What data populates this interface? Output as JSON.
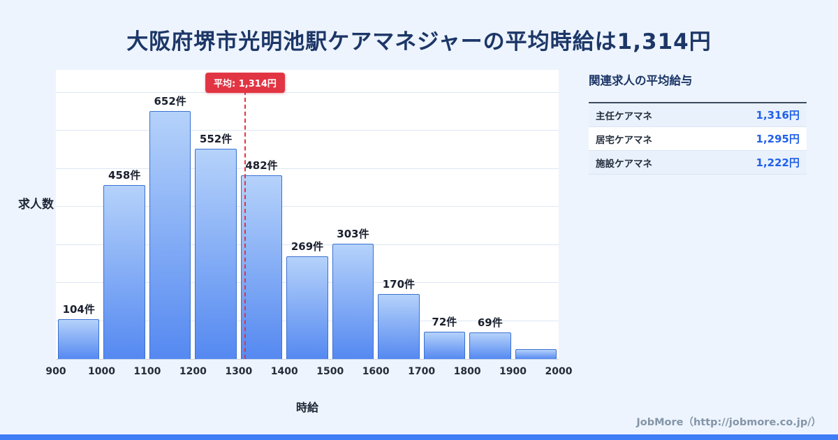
{
  "colors": {
    "background": "#edf4fd",
    "title_navy": "#1c3667",
    "bar_top": "#b5d2fa",
    "bar_bottom": "#5589f1",
    "average_red": "#e23543",
    "value_blue": "#2160e8",
    "accent_blue": "#3f7df6"
  },
  "chart_data": {
    "type": "bar",
    "title": "大阪府堺市光明池駅ケアマネジャーの平均時給は1,314円",
    "xlabel": "時給",
    "ylabel": "求人数",
    "x_ticks": [
      900,
      1000,
      1100,
      1200,
      1300,
      1400,
      1500,
      1600,
      1700,
      1800,
      1900,
      2000
    ],
    "bins": [
      {
        "range": [
          900,
          1000
        ],
        "value": 104,
        "label": "104件"
      },
      {
        "range": [
          1000,
          1100
        ],
        "value": 458,
        "label": "458件"
      },
      {
        "range": [
          1100,
          1200
        ],
        "value": 652,
        "label": "652件"
      },
      {
        "range": [
          1200,
          1300
        ],
        "value": 552,
        "label": "552件"
      },
      {
        "range": [
          1300,
          1400
        ],
        "value": 482,
        "label": "482件"
      },
      {
        "range": [
          1400,
          1500
        ],
        "value": 269,
        "label": "269件"
      },
      {
        "range": [
          1500,
          1600
        ],
        "value": 303,
        "label": "303件"
      },
      {
        "range": [
          1600,
          1700
        ],
        "value": 170,
        "label": "170件"
      },
      {
        "range": [
          1700,
          1800
        ],
        "value": 72,
        "label": "72件"
      },
      {
        "range": [
          1800,
          1900
        ],
        "value": 69,
        "label": "69件"
      },
      {
        "range": [
          1900,
          2000
        ],
        "value": 25,
        "label": ""
      }
    ],
    "average": {
      "value": 1314,
      "label": "平均: 1,314円"
    },
    "xlim": [
      900,
      2000
    ],
    "ylim": [
      0,
      760
    ],
    "grid": true,
    "grid_step": 100,
    "legend": "none"
  },
  "side_panel": {
    "title": "関連求人の平均給与",
    "rows": [
      {
        "label": "主任ケアマネ",
        "value": "1,316円"
      },
      {
        "label": "居宅ケアマネ",
        "value": "1,295円"
      },
      {
        "label": "施設ケアマネ",
        "value": "1,222円"
      }
    ]
  },
  "footer": {
    "text": "JobMore（http://jobmore.co.jp/）"
  }
}
